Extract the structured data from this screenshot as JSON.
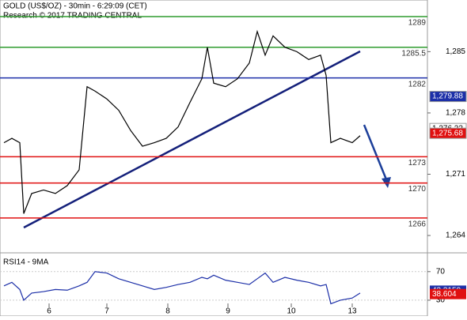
{
  "chart_data": {
    "type": "line",
    "title": "GOLD (US$/OZ) - 30min - 6:29:09 (CET)",
    "subtitle": "Research © 2017 TRADING CENTRAL",
    "x": [
      1,
      3,
      5,
      6,
      8,
      11,
      14,
      17,
      20,
      22,
      24,
      27,
      30,
      33,
      36,
      39,
      42,
      45,
      48,
      51,
      52.4,
      54,
      57,
      60,
      63,
      65,
      67,
      69,
      72,
      75,
      78,
      81,
      82.4,
      83.6,
      86,
      89,
      91
    ],
    "xlim": [
      0,
      108
    ],
    "xticks": [
      {
        "value": 12.4,
        "label": "6"
      },
      {
        "value": 27,
        "label": "7"
      },
      {
        "value": 42.4,
        "label": "8"
      },
      {
        "value": 57.6,
        "label": "9"
      },
      {
        "value": 73.6,
        "label": "10"
      },
      {
        "value": 89,
        "label": "13"
      }
    ],
    "series": [
      {
        "name": "GOLD",
        "color": "#000000",
        "values": [
          1274.6,
          1275.1,
          1274.6,
          1266.5,
          1268.8,
          1269.2,
          1268.8,
          1269.7,
          1271.5,
          1281.0,
          1280.5,
          1279.6,
          1278.3,
          1276.0,
          1274.2,
          1274.6,
          1275.1,
          1276.4,
          1279.2,
          1281.9,
          1285.5,
          1281.4,
          1281.0,
          1281.9,
          1283.7,
          1287.3,
          1284.6,
          1286.8,
          1285.5,
          1285.0,
          1284.1,
          1284.6,
          1282.3,
          1274.6,
          1275.1,
          1274.6,
          1275.4
        ]
      }
    ],
    "ylim": [
      1262.2,
      1290.9
    ],
    "yticks": [
      {
        "value": 1285,
        "label": "1,285"
      },
      {
        "value": 1278,
        "label": "1,278"
      },
      {
        "value": 1271,
        "label": "1,271"
      },
      {
        "value": 1264,
        "label": "1,264"
      }
    ],
    "levels": [
      {
        "value": 1289,
        "color": "#2e9b2e"
      },
      {
        "value": 1285.5,
        "color": "#2e9b2e"
      },
      {
        "value": 1282,
        "color": "#1c2fa8"
      },
      {
        "value": 1273,
        "color": "#e01010"
      },
      {
        "value": 1270,
        "color": "#e01010"
      },
      {
        "value": 1266,
        "color": "#e01010"
      }
    ],
    "price_tags": [
      {
        "value": 1279.88,
        "label": "1,279.88",
        "color": "#1c2fa8",
        "text_color": "#ffffff"
      },
      {
        "value": 1276.22,
        "label": "1,276.22",
        "color": "#ffffff",
        "text_color": "#000000"
      },
      {
        "value": 1275.68,
        "label": "1,275.68",
        "color": "#e01010",
        "text_color": "#ffffff"
      }
    ],
    "rsi": {
      "label": "RSI14 - 9MA",
      "color": "#1c2fa8",
      "values": [
        50,
        55,
        45,
        30,
        40,
        42,
        45,
        44,
        50,
        55,
        70,
        68,
        60,
        55,
        50,
        45,
        48,
        52,
        55,
        62,
        60,
        65,
        58,
        55,
        52,
        60,
        68,
        55,
        62,
        58,
        55,
        50,
        52,
        25,
        30,
        33,
        40
      ],
      "ylim": [
        10,
        93
      ],
      "yticks": [
        70,
        30
      ],
      "tags": [
        {
          "value": 43.3159,
          "color": "#1c2fa8"
        },
        {
          "value": 38.604,
          "color": "#e01010"
        }
      ]
    }
  }
}
